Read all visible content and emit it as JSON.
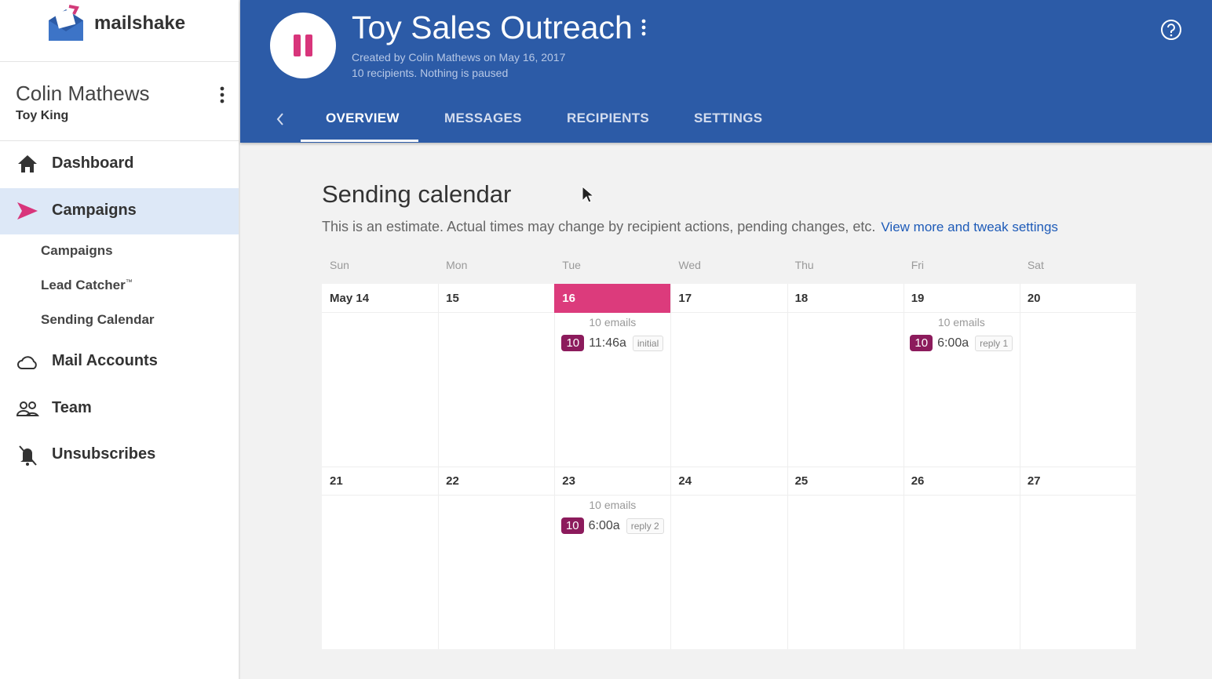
{
  "sidebar": {
    "brand": "mailshake",
    "user": {
      "name": "Colin Mathews",
      "company": "Toy King"
    },
    "nav": [
      {
        "label": "Dashboard"
      },
      {
        "label": "Campaigns",
        "active": true,
        "children": [
          {
            "label": "Campaigns"
          },
          {
            "label": "Lead Catcher",
            "mark": "™"
          },
          {
            "label": "Sending Calendar"
          }
        ]
      },
      {
        "label": "Mail Accounts"
      },
      {
        "label": "Team"
      },
      {
        "label": "Unsubscribes"
      }
    ]
  },
  "header": {
    "title": "Toy Sales Outreach",
    "created": "Created by Colin Mathews on May 16, 2017",
    "status": "10 recipients. Nothing is paused",
    "tabs": [
      {
        "label": "OVERVIEW",
        "active": true
      },
      {
        "label": "MESSAGES"
      },
      {
        "label": "RECIPIENTS"
      },
      {
        "label": "SETTINGS"
      }
    ]
  },
  "calendar": {
    "title": "Sending calendar",
    "note": "This is an estimate. Actual times may change by recipient actions, pending changes, etc.",
    "link": "View more and tweak settings",
    "weekdays": [
      "Sun",
      "Mon",
      "Tue",
      "Wed",
      "Thu",
      "Fri",
      "Sat"
    ],
    "weeks": [
      [
        {
          "date": "May 14"
        },
        {
          "date": "15"
        },
        {
          "date": "16",
          "highlighted": true,
          "summary": "10 emails",
          "events": [
            {
              "count": "10",
              "time": "11:46a",
              "tag": "initial"
            }
          ]
        },
        {
          "date": "17"
        },
        {
          "date": "18"
        },
        {
          "date": "19",
          "summary": "10 emails",
          "events": [
            {
              "count": "10",
              "time": "6:00a",
              "tag": "reply 1"
            }
          ]
        },
        {
          "date": "20"
        }
      ],
      [
        {
          "date": "21"
        },
        {
          "date": "22"
        },
        {
          "date": "23",
          "summary": "10 emails",
          "events": [
            {
              "count": "10",
              "time": "6:00a",
              "tag": "reply 2"
            }
          ]
        },
        {
          "date": "24"
        },
        {
          "date": "25"
        },
        {
          "date": "26"
        },
        {
          "date": "27"
        }
      ]
    ]
  }
}
